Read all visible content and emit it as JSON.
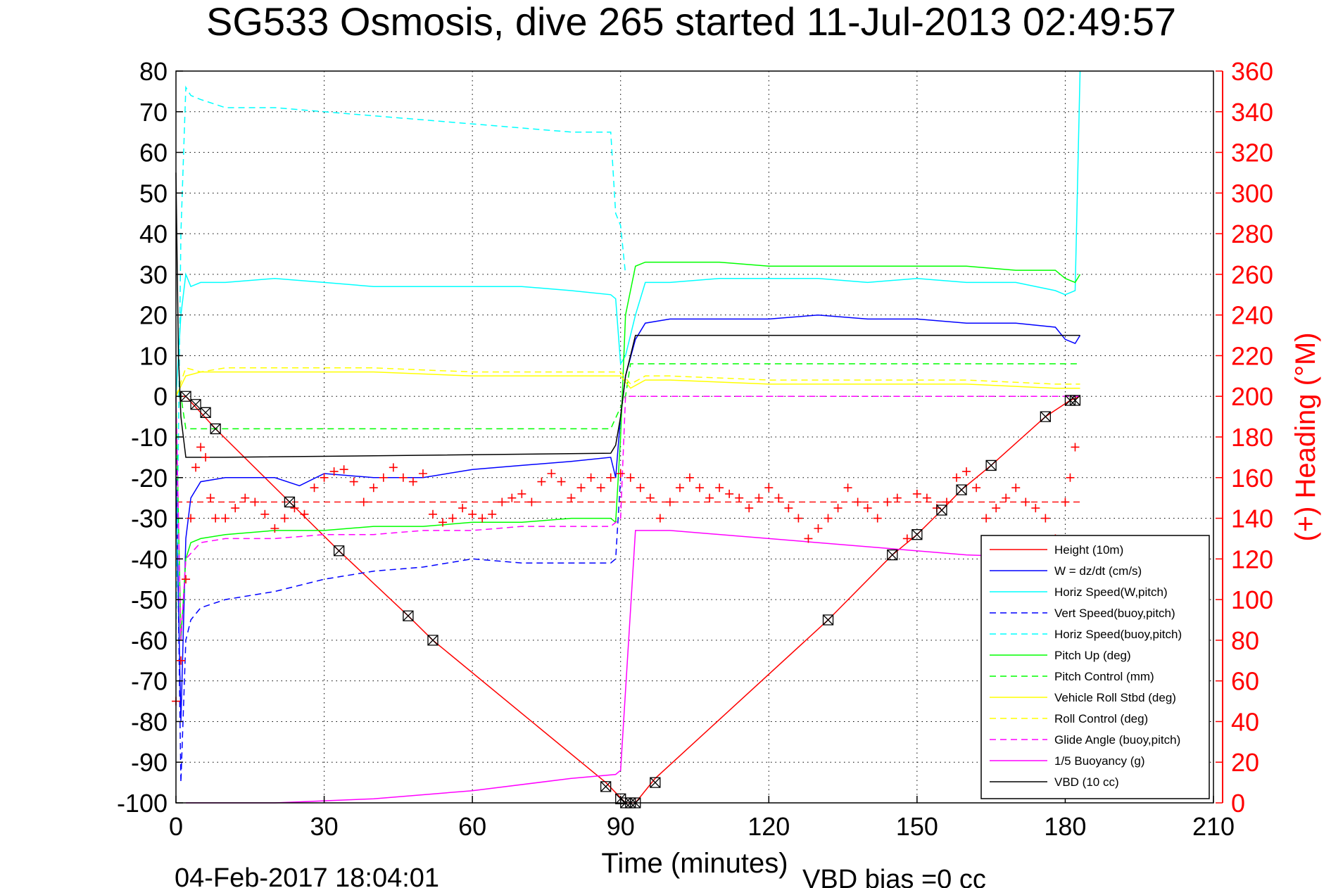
{
  "chart_data": {
    "type": "line",
    "title": "SG533 Osmosis, dive 265 started 11-Jul-2013 02:49:57",
    "xlabel": "Time (minutes)",
    "ylabel": "",
    "y2label": "(+) Heading (°M)",
    "footer_date": "04-Feb-2017 18:04:01",
    "footer_bias": "VBD bias =0 cc",
    "xlim": [
      0,
      210
    ],
    "ylim": [
      -100,
      80
    ],
    "y2lim": [
      0,
      360
    ],
    "xticks": [
      0,
      30,
      60,
      90,
      120,
      150,
      180,
      210
    ],
    "yticks": [
      80,
      70,
      60,
      50,
      40,
      30,
      20,
      10,
      0,
      -10,
      -20,
      -30,
      -40,
      -50,
      -60,
      -70,
      -80,
      -90,
      -100
    ],
    "y2ticks": [
      360,
      340,
      320,
      300,
      280,
      260,
      240,
      220,
      200,
      180,
      160,
      140,
      120,
      100,
      80,
      60,
      40,
      20,
      0
    ],
    "grid": true,
    "legend_position": "bottom-right",
    "colors": {
      "red": "#ff0000",
      "blue": "#0000ff",
      "cyan": "#00ffff",
      "green": "#00ff00",
      "yellow": "#ffff00",
      "magenta": "#ff00ff",
      "black": "#000000"
    },
    "series": [
      {
        "name": "Height (10m)",
        "color": "#ff0000",
        "dash": false,
        "x": [
          0,
          2,
          8,
          23,
          33,
          47,
          52,
          87,
          91,
          93,
          97,
          132,
          145,
          150,
          155,
          159,
          165,
          176,
          181,
          183
        ],
        "y": [
          0,
          0,
          -8,
          -26,
          -38,
          -54,
          -60,
          -95,
          -100,
          -100,
          -94,
          -55,
          -39,
          -34,
          -28,
          -23,
          -17,
          -5,
          -1,
          0
        ]
      },
      {
        "name": "W = dz/dt (cm/s)",
        "color": "#0000ff",
        "dash": false,
        "x": [
          0,
          1,
          2,
          3,
          5,
          10,
          20,
          25,
          30,
          40,
          50,
          60,
          70,
          80,
          88,
          89,
          90,
          91,
          93,
          95,
          100,
          110,
          120,
          130,
          140,
          150,
          160,
          170,
          178,
          180,
          182,
          183
        ],
        "y": [
          -20,
          -80,
          -35,
          -25,
          -21,
          -20,
          -20,
          -22,
          -19,
          -20,
          -20,
          -18,
          -17,
          -16,
          -15,
          -20,
          -5,
          5,
          14,
          18,
          19,
          19,
          19,
          20,
          19,
          19,
          18,
          18,
          17,
          14,
          13,
          15
        ]
      },
      {
        "name": "Horiz Speed(W,pitch)",
        "color": "#00ffff",
        "dash": false,
        "x": [
          0,
          1,
          2,
          3,
          5,
          10,
          20,
          30,
          40,
          50,
          60,
          70,
          80,
          88,
          89,
          90,
          91,
          93,
          95,
          100,
          110,
          120,
          130,
          140,
          150,
          160,
          170,
          178,
          180,
          182,
          183
        ],
        "y": [
          0,
          20,
          30,
          27,
          28,
          28,
          29,
          28,
          27,
          27,
          27,
          27,
          26,
          25,
          24,
          8,
          10,
          20,
          28,
          28,
          29,
          29,
          29,
          28,
          29,
          28,
          28,
          26,
          25,
          26,
          80
        ]
      },
      {
        "name": "Vert Speed(buoy,pitch)",
        "color": "#0000ff",
        "dash": true,
        "x": [
          0,
          1,
          2,
          3,
          5,
          10,
          20,
          30,
          40,
          50,
          60,
          70,
          80,
          88,
          89,
          90
        ],
        "y": [
          -10,
          -95,
          -60,
          -55,
          -52,
          -50,
          -48,
          -45,
          -43,
          -42,
          -40,
          -41,
          -41,
          -41,
          -40,
          -20
        ]
      },
      {
        "name": "Horiz Speed(buoy,pitch)",
        "color": "#00ffff",
        "dash": true,
        "x": [
          0,
          1,
          2,
          3,
          5,
          10,
          20,
          30,
          40,
          50,
          60,
          70,
          80,
          88,
          89,
          90,
          91
        ],
        "y": [
          -60,
          40,
          76,
          74,
          73,
          71,
          71,
          70,
          69,
          68,
          67,
          66,
          65,
          65,
          45,
          42,
          30
        ]
      },
      {
        "name": "Pitch Up (deg)",
        "color": "#00ff00",
        "dash": false,
        "x": [
          0,
          1,
          2,
          3,
          5,
          10,
          20,
          30,
          40,
          50,
          60,
          70,
          80,
          88,
          89,
          90,
          91,
          93,
          95,
          100,
          110,
          120,
          130,
          140,
          150,
          160,
          170,
          178,
          180,
          182,
          183
        ],
        "y": [
          0,
          -60,
          -40,
          -36,
          -35,
          -34,
          -33,
          -33,
          -32,
          -32,
          -31,
          -31,
          -30,
          -30,
          -31,
          -10,
          20,
          32,
          33,
          33,
          33,
          32,
          32,
          32,
          32,
          32,
          31,
          31,
          29,
          28,
          30
        ]
      },
      {
        "name": "Pitch Control (mm)",
        "color": "#00ff00",
        "dash": true,
        "x": [
          0,
          1,
          2,
          8,
          88,
          91,
          92,
          183
        ],
        "y": [
          0,
          0,
          -8,
          -8,
          -8,
          0,
          8,
          8
        ]
      },
      {
        "name": "Vehicle Roll Stbd (deg)",
        "color": "#ffff00",
        "dash": false,
        "x": [
          0,
          2,
          5,
          10,
          40,
          60,
          88,
          90,
          92,
          95,
          100,
          120,
          150,
          160,
          178,
          180,
          183
        ],
        "y": [
          0,
          5,
          6,
          6,
          6,
          5,
          5,
          5,
          2,
          4,
          4,
          3,
          3,
          3,
          2,
          2,
          2
        ]
      },
      {
        "name": "Roll Control (deg)",
        "color": "#ffff00",
        "dash": true,
        "x": [
          0,
          2,
          5,
          10,
          40,
          60,
          88,
          90,
          92,
          95,
          100,
          120,
          150,
          160,
          178,
          180,
          183
        ],
        "y": [
          0,
          7,
          6,
          7,
          7,
          6,
          6,
          6,
          3,
          5,
          5,
          4,
          4,
          4,
          3,
          3,
          3
        ]
      },
      {
        "name": "Glide Angle (buoy,pitch)",
        "color": "#ff00ff",
        "dash": true,
        "x": [
          0,
          1,
          2,
          5,
          10,
          20,
          30,
          40,
          50,
          60,
          70,
          80,
          88,
          90,
          91,
          183
        ],
        "y": [
          0,
          -60,
          -40,
          -36,
          -35,
          -35,
          -34,
          -34,
          -33,
          -33,
          -32,
          -32,
          -32,
          -30,
          0,
          0
        ]
      },
      {
        "name": "1/5 Buoyancy (g)",
        "color": "#ff00ff",
        "dash": false,
        "x": [
          2,
          20,
          40,
          60,
          80,
          89,
          90,
          93,
          100,
          120,
          140,
          160,
          183
        ],
        "y": [
          -100,
          -100,
          -99,
          -97,
          -94,
          -93,
          -92,
          -33,
          -33,
          -35,
          -37,
          -39,
          -40
        ]
      },
      {
        "name": "VBD (10 cc)",
        "color": "#000000",
        "dash": false,
        "x": [
          0,
          0.5,
          1,
          2,
          3,
          10,
          50,
          88,
          89,
          90,
          91,
          92,
          93,
          97,
          183
        ],
        "y": [
          55,
          10,
          -5,
          -15,
          -15,
          -15,
          -14.5,
          -14,
          -12,
          -5,
          5,
          10,
          15,
          15,
          15
        ]
      }
    ],
    "heading_series": {
      "name": "Heading",
      "color": "#ff0000",
      "marker": "+",
      "mean": 148,
      "x": [
        0,
        1,
        2,
        3,
        4,
        5,
        6,
        7,
        8,
        10,
        12,
        14,
        16,
        18,
        20,
        22,
        24,
        26,
        28,
        30,
        32,
        34,
        36,
        38,
        40,
        42,
        44,
        46,
        48,
        50,
        52,
        54,
        56,
        58,
        60,
        62,
        64,
        66,
        68,
        70,
        72,
        74,
        76,
        78,
        80,
        82,
        84,
        86,
        88,
        90,
        92,
        94,
        96,
        98,
        100,
        102,
        104,
        106,
        108,
        110,
        112,
        114,
        116,
        118,
        120,
        122,
        124,
        126,
        128,
        130,
        132,
        134,
        136,
        138,
        140,
        142,
        144,
        146,
        148,
        150,
        152,
        154,
        156,
        158,
        160,
        162,
        164,
        166,
        168,
        170,
        172,
        174,
        176,
        178,
        180,
        181,
        182
      ],
      "y": [
        50,
        70,
        110,
        140,
        165,
        175,
        170,
        150,
        140,
        140,
        145,
        150,
        148,
        142,
        135,
        140,
        145,
        142,
        155,
        160,
        163,
        164,
        158,
        148,
        155,
        160,
        165,
        160,
        158,
        162,
        142,
        138,
        140,
        145,
        142,
        140,
        142,
        148,
        150,
        152,
        148,
        158,
        162,
        158,
        150,
        155,
        160,
        155,
        160,
        162,
        160,
        155,
        150,
        140,
        148,
        155,
        160,
        155,
        150,
        155,
        152,
        150,
        145,
        150,
        155,
        150,
        145,
        140,
        130,
        135,
        140,
        145,
        155,
        148,
        145,
        140,
        148,
        150,
        130,
        152,
        150,
        145,
        148,
        160,
        163,
        155,
        140,
        145,
        150,
        155,
        148,
        145,
        140,
        130,
        148,
        160,
        175
      ]
    },
    "markers": {
      "symbol": "hourglass-square",
      "x": [
        2,
        4,
        6,
        8,
        23,
        33,
        47,
        52,
        87,
        90,
        91,
        92,
        93,
        97,
        132,
        145,
        150,
        155,
        159,
        165,
        176,
        181,
        182
      ],
      "y": [
        0,
        -2,
        -4,
        -8,
        -26,
        -38,
        -54,
        -60,
        -96,
        -99,
        -100,
        -100,
        -100,
        -95,
        -55,
        -39,
        -34,
        -28,
        -23,
        -17,
        -5,
        -1,
        -1
      ]
    }
  }
}
